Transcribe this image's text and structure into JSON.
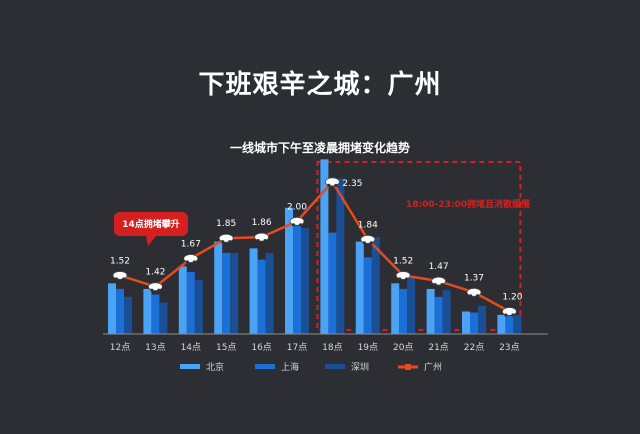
{
  "header": {
    "title": "下班艰辛之城：广州",
    "subtitle": "一线城市下午至凌晨拥堵变化趋势"
  },
  "colors": {
    "background": "#2c2e33",
    "beijing": "#4ba3f5",
    "shanghai": "#1c6fd6",
    "shenzhen": "#1a4f96",
    "guangzhou": "#e8491d",
    "highlight": "#d62020"
  },
  "chart_data": {
    "type": "bar",
    "categories": [
      "12点",
      "13点",
      "14点",
      "15点",
      "16点",
      "17点",
      "18点",
      "19点",
      "20点",
      "21点",
      "22点",
      "23点"
    ],
    "series": [
      {
        "name": "北京",
        "type": "bar",
        "values": [
          1.45,
          1.4,
          1.6,
          1.82,
          1.76,
          2.12,
          2.55,
          1.82,
          1.45,
          1.4,
          1.2,
          1.17
        ]
      },
      {
        "name": "上海",
        "type": "bar",
        "values": [
          1.4,
          1.35,
          1.55,
          1.72,
          1.66,
          1.96,
          1.9,
          1.68,
          1.4,
          1.33,
          1.19,
          1.16
        ]
      },
      {
        "name": "深圳",
        "type": "bar",
        "values": [
          1.33,
          1.28,
          1.48,
          1.72,
          1.72,
          1.94,
          2.38,
          1.86,
          1.5,
          1.39,
          1.25,
          1.17
        ]
      },
      {
        "name": "广州",
        "type": "line",
        "values": [
          1.52,
          1.42,
          1.67,
          1.85,
          1.86,
          2.0,
          2.35,
          1.84,
          1.52,
          1.47,
          1.37,
          1.2
        ]
      }
    ],
    "ylim": [
      1.0,
      2.5
    ],
    "annotations": {
      "callout": "14点拥堵攀升",
      "highlight_text": "18:00-23:00拥堵且消散缓慢",
      "highlight_range": [
        "18点",
        "23点"
      ]
    },
    "legend_position": "bottom"
  }
}
